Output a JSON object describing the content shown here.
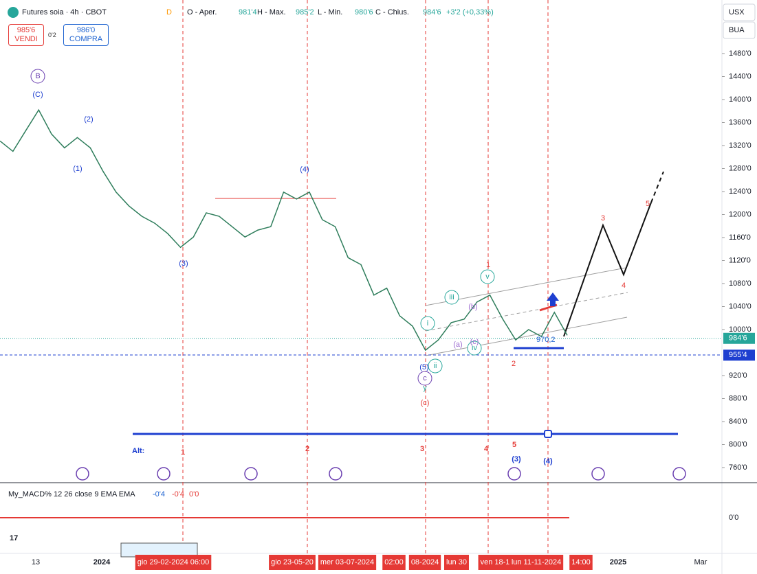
{
  "header": {
    "symbol": "Futures soia · 4h · CBOT",
    "badge": "D",
    "ohlc": "O - Aper.",
    "open": "981'4",
    "high_label": "H - Max.",
    "high": "985'2",
    "low_label": "L - Min.",
    "low": "980'6",
    "close_label": "C - Chius.",
    "close": "984'6",
    "change": "+3'2 (+0,33%)"
  },
  "trade": {
    "sell_price": "985'6",
    "sell": "VENDI",
    "spread": "0'2",
    "buy_price": "986'0",
    "buy": "COMPRA"
  },
  "axis_controls": {
    "currency": "USX",
    "mode": "BUA"
  },
  "price_axis": {
    "ticks": [
      {
        "value": 1480,
        "label": "1480'0"
      },
      {
        "value": 1440,
        "label": "1440'0"
      },
      {
        "value": 1400,
        "label": "1400'0"
      },
      {
        "value": 1360,
        "label": "1360'0"
      },
      {
        "value": 1320,
        "label": "1320'0"
      },
      {
        "value": 1280,
        "label": "1280'0"
      },
      {
        "value": 1240,
        "label": "1240'0"
      },
      {
        "value": 1200,
        "label": "1200'0"
      },
      {
        "value": 1160,
        "label": "1160'0"
      },
      {
        "value": 1120,
        "label": "1120'0"
      },
      {
        "value": 1080,
        "label": "1080'0"
      },
      {
        "value": 1040,
        "label": "1040'0"
      },
      {
        "value": 1000,
        "label": "1000'0"
      },
      {
        "value": 920,
        "label": "920'0"
      },
      {
        "value": 880,
        "label": "880'0"
      },
      {
        "value": 840,
        "label": "840'0"
      },
      {
        "value": 800,
        "label": "800'0"
      },
      {
        "value": 760,
        "label": "760'0"
      }
    ],
    "last": {
      "value": 984.75,
      "label": "984'6"
    },
    "level": {
      "value": 955.5,
      "label": "955'4"
    }
  },
  "price": [
    1328,
    1310,
    1346,
    1382,
    1340,
    1316,
    1334,
    1316,
    1275,
    1239,
    1215,
    1197,
    1185,
    1167,
    1143,
    1161,
    1203,
    1197,
    1179,
    1161,
    1173,
    1179,
    1239,
    1227,
    1239,
    1191,
    1179,
    1125,
    1113,
    1060,
    1072,
    1024,
    1006,
    964,
    982,
    1012,
    1018,
    1048,
    1060,
    1018,
    982,
    1000,
    988,
    1030,
    990
  ],
  "annotation": "970,2",
  "waves": [
    "B",
    "(C)",
    "(2)",
    "(1)",
    "(3)",
    "(4)",
    "1",
    "v",
    "iii",
    "i",
    "ii",
    "iv",
    "(b)",
    "(a)",
    "(c)",
    "(5)",
    "c",
    "y",
    "(c)",
    "2",
    "3",
    "4",
    "5"
  ],
  "alt": {
    "label": "Alt:",
    "marks": [
      "1",
      "2",
      "3",
      "4",
      "5",
      "(3)",
      "(4)"
    ]
  },
  "macd": {
    "title": "My_MACD% 12 26 close 9 EMA EMA",
    "v1": "-0'4",
    "v2": "-0'4",
    "v3": "0'0",
    "axis": "0'0"
  },
  "time_axis": [
    "13",
    "2024",
    "gio 29-02-2024  06:00",
    "gio 23-05-20",
    "mer 03-07-2024",
    "02:00",
    "08-2024",
    "lun 30",
    "ven 18-1",
    "lun 11-11-2024",
    "14:00",
    "2025",
    "Mar"
  ]
}
